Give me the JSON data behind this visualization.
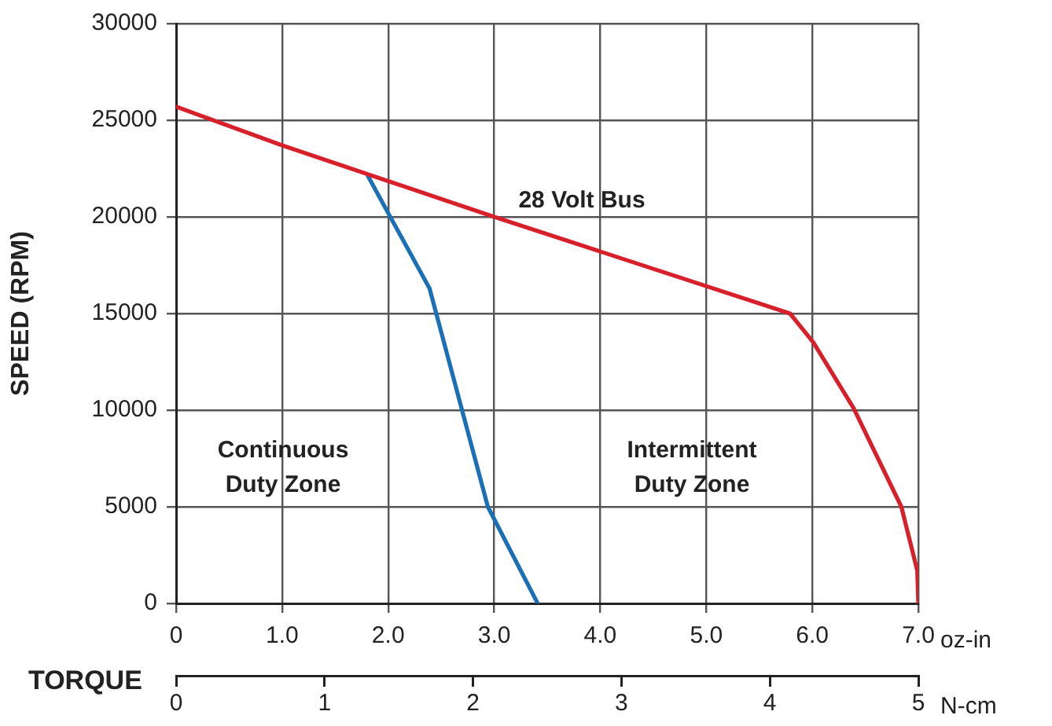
{
  "chart_data": {
    "type": "line",
    "xlabel": "oz-in",
    "x2label": "N-cm",
    "ylabel": "SPEED (RPM)",
    "xlim": [
      0,
      7
    ],
    "xticks": [
      0,
      {
        "value": 1,
        "label": "1.0"
      },
      {
        "value": 2,
        "label": "2.0"
      },
      {
        "value": 3,
        "label": "3.0"
      },
      {
        "value": 4,
        "label": "4.0"
      },
      {
        "value": 5,
        "label": "5.0"
      },
      {
        "value": 6,
        "label": "6.0"
      },
      {
        "value": 7,
        "label": "7.0"
      }
    ],
    "x2lim": [
      0,
      5
    ],
    "x2ticks": [
      0,
      1,
      2,
      3,
      4,
      5
    ],
    "ylim": [
      0,
      30000
    ],
    "yticks": [
      0,
      5000,
      10000,
      15000,
      20000,
      25000,
      30000
    ],
    "grid": true,
    "legend": false,
    "marker": "none",
    "line_style": "solid",
    "series": [
      {
        "color": "#d7202a",
        "x": [
          0,
          1,
          3,
          5.79,
          6.01,
          6.39,
          6.84,
          6.99,
          7
        ],
        "values": [
          25700,
          23700,
          20000,
          15000,
          13500,
          10100,
          5000,
          1700,
          0
        ]
      },
      {
        "color": "#1b6fb5",
        "x": [
          1.81,
          2.39,
          2.94,
          3.41
        ],
        "values": [
          22100,
          16300,
          5000,
          0
        ]
      }
    ],
    "annotations": [
      "TORQUE",
      "28 Volt Bus",
      "Continuous Duty Zone",
      "Intermittent Duty Zone"
    ]
  }
}
